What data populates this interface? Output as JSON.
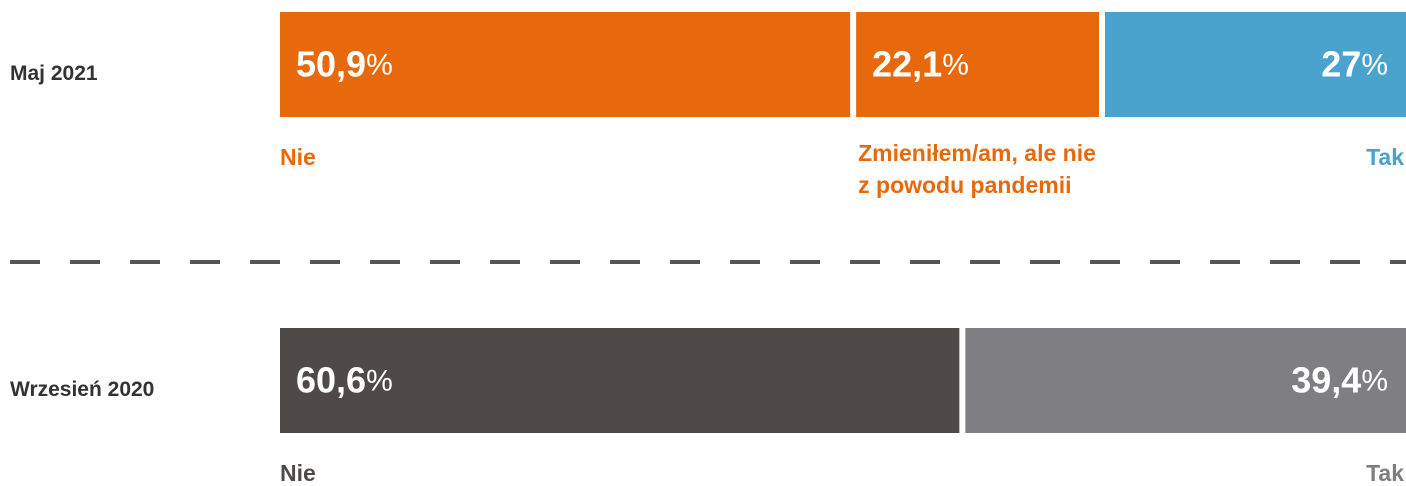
{
  "chart_data": {
    "type": "bar",
    "orientation": "horizontal",
    "stacked": true,
    "xlim": [
      0,
      100
    ],
    "rows": [
      {
        "name": "Maj 2021",
        "segments": [
          {
            "name": "Nie",
            "value": 50.9,
            "value_label": "50,9%",
            "color": "#e8690b"
          },
          {
            "name": [
              "Zmieniłem/am, ale nie",
              "z powodu pandemii"
            ],
            "value": 22.1,
            "value_label": "22,1%",
            "color": "#e8690b"
          },
          {
            "name": "Tak",
            "value": 27,
            "value_label": "27%",
            "color": "#4aa3cd"
          }
        ]
      },
      {
        "name": "Wrzesień 2020",
        "segments": [
          {
            "name": "Nie",
            "value": 60.6,
            "value_label": "60,6%",
            "color": "#4f4a47"
          },
          {
            "name": "Tak",
            "value": 39.4,
            "value_label": "39,4%",
            "color": "#7f7e82"
          }
        ]
      }
    ]
  }
}
